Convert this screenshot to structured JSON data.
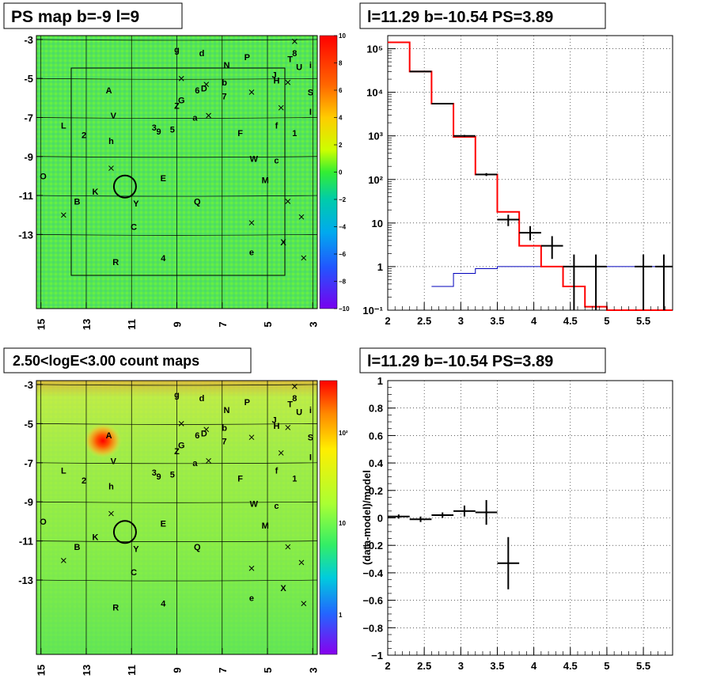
{
  "panels": {
    "tl_title": "PS map b=-9 l=9",
    "tr_title": "l=11.29 b=-10.54 PS=3.89",
    "bl_title": "2.50<logE<3.00 count maps",
    "br_title": "l=11.29 b=-10.54 PS=3.89"
  },
  "map_axes": {
    "y_ticks": [
      "-3",
      "-5",
      "-7",
      "-9",
      "-11",
      "-13"
    ],
    "x_ticks": [
      "15",
      "13",
      "11",
      "9",
      "7",
      "5",
      "3"
    ]
  },
  "colorbar_top": {
    "ticks": [
      "10",
      "8",
      "6",
      "4",
      "2",
      "0",
      "−2",
      "−4",
      "−6",
      "−8",
      "−10"
    ]
  },
  "colorbar_bottom": {
    "ticks": [
      "10²",
      "10",
      "1"
    ]
  },
  "sources": [
    {
      "t": "g",
      "l": 9.0,
      "b": -3.5
    },
    {
      "t": "d",
      "l": 7.9,
      "b": -3.7
    },
    {
      "t": "P",
      "l": 5.9,
      "b": -3.9
    },
    {
      "t": "N",
      "l": 6.8,
      "b": -4.3
    },
    {
      "t": "T",
      "l": 4.0,
      "b": -4.0
    },
    {
      "t": "8",
      "l": 3.8,
      "b": -3.7
    },
    {
      "t": "U",
      "l": 3.6,
      "b": -4.4
    },
    {
      "t": "i",
      "l": 3.1,
      "b": -4.3
    },
    {
      "t": "J",
      "l": 4.7,
      "b": -4.8
    },
    {
      "t": "H",
      "l": 4.6,
      "b": -5.1
    },
    {
      "t": "b",
      "l": 6.9,
      "b": -5.2
    },
    {
      "t": "6",
      "l": 8.1,
      "b": -5.6
    },
    {
      "t": "D",
      "l": 7.8,
      "b": -5.5
    },
    {
      "t": "S",
      "l": 3.1,
      "b": -5.7
    },
    {
      "t": "A",
      "l": 12.0,
      "b": -5.6
    },
    {
      "t": "7",
      "l": 6.9,
      "b": -5.9
    },
    {
      "t": "G",
      "l": 8.8,
      "b": -6.1
    },
    {
      "t": "Z",
      "l": 9.0,
      "b": -6.4
    },
    {
      "t": "I",
      "l": 3.1,
      "b": -6.7
    },
    {
      "t": "V",
      "l": 11.8,
      "b": -6.9
    },
    {
      "t": "a",
      "l": 8.2,
      "b": -7.0
    },
    {
      "t": "L",
      "l": 14.0,
      "b": -7.4
    },
    {
      "t": "f",
      "l": 4.6,
      "b": -7.4
    },
    {
      "t": "3",
      "l": 10.0,
      "b": -7.5
    },
    {
      "t": "5",
      "l": 9.2,
      "b": -7.6
    },
    {
      "t": "9",
      "l": 9.8,
      "b": -7.7
    },
    {
      "t": "F",
      "l": 6.2,
      "b": -7.8
    },
    {
      "t": "1",
      "l": 3.8,
      "b": -7.8
    },
    {
      "t": "2",
      "l": 13.1,
      "b": -7.9
    },
    {
      "t": "h",
      "l": 11.9,
      "b": -8.2
    },
    {
      "t": "W",
      "l": 5.6,
      "b": -9.1
    },
    {
      "t": "c",
      "l": 4.6,
      "b": -9.2
    },
    {
      "t": "E",
      "l": 9.6,
      "b": -10.1
    },
    {
      "t": "M",
      "l": 5.1,
      "b": -10.2
    },
    {
      "t": "O",
      "l": 14.9,
      "b": -10.0
    },
    {
      "t": "K",
      "l": 12.6,
      "b": -10.8
    },
    {
      "t": "B",
      "l": 13.4,
      "b": -11.3
    },
    {
      "t": "Y",
      "l": 10.8,
      "b": -11.4
    },
    {
      "t": "Q",
      "l": 8.1,
      "b": -11.3
    },
    {
      "t": "C",
      "l": 10.9,
      "b": -12.6
    },
    {
      "t": "X",
      "l": 4.3,
      "b": -13.4
    },
    {
      "t": "e",
      "l": 5.7,
      "b": -13.9
    },
    {
      "t": "4",
      "l": 9.6,
      "b": -14.2
    },
    {
      "t": "R",
      "l": 11.7,
      "b": -14.4
    }
  ],
  "crosses": [
    {
      "l": 3.8,
      "b": -3.1
    },
    {
      "l": 8.8,
      "b": -5.0
    },
    {
      "l": 7.7,
      "b": -5.3
    },
    {
      "l": 5.7,
      "b": -5.7
    },
    {
      "l": 4.1,
      "b": -5.2
    },
    {
      "l": 4.4,
      "b": -6.5
    },
    {
      "l": 7.6,
      "b": -6.9
    },
    {
      "l": 11.9,
      "b": -9.6
    },
    {
      "l": 14.0,
      "b": -12.0
    },
    {
      "l": 4.1,
      "b": -11.3
    },
    {
      "l": 3.5,
      "b": -12.1
    },
    {
      "l": 5.7,
      "b": -12.4
    },
    {
      "l": 3.4,
      "b": -14.2
    }
  ],
  "circle": {
    "l": 11.29,
    "b": -10.54
  },
  "chart_data": [
    {
      "type": "line",
      "title": "l=11.29 b=-10.54 PS=3.89",
      "xlabel": "",
      "ylabel": "",
      "xlim": [
        2.0,
        5.9
      ],
      "ylim": [
        0.1,
        200000
      ],
      "yscale": "log",
      "grid": true,
      "x_ticks": [
        "2",
        "2.5",
        "3",
        "3.5",
        "4",
        "4.5",
        "5",
        "5.5"
      ],
      "y_ticks": [
        "10⁻¹",
        "1",
        "10",
        "10²",
        "10³",
        "10⁴",
        "10⁵"
      ],
      "model_total": {
        "color": "#ff0000",
        "bin_edges": [
          2.0,
          2.3,
          2.6,
          2.9,
          3.2,
          3.5,
          3.8,
          4.1,
          4.4,
          4.7,
          5.0,
          5.3,
          5.6,
          5.9
        ],
        "values": [
          140000,
          30000,
          5500,
          950,
          130,
          18,
          3.0,
          1.0,
          0.35,
          0.12,
          0.1,
          0.1,
          0.1
        ]
      },
      "model_background": {
        "color": "#0000bb",
        "bin_edges": [
          2.6,
          2.9,
          3.2,
          3.5,
          3.8,
          4.1,
          4.4,
          4.7,
          5.0,
          5.3,
          5.6,
          5.9
        ],
        "values": [
          0.35,
          0.7,
          0.9,
          1.0,
          1.0,
          1.0,
          1.0,
          1.0,
          1.0,
          1.0,
          1.0
        ]
      },
      "data_points": [
        {
          "x": 2.45,
          "xerr": 0.15,
          "y": 30000,
          "ylo": 29500,
          "yhi": 30500
        },
        {
          "x": 2.75,
          "xerr": 0.15,
          "y": 5500,
          "ylo": 5300,
          "yhi": 5700
        },
        {
          "x": 3.05,
          "xerr": 0.15,
          "y": 1000,
          "ylo": 950,
          "yhi": 1050
        },
        {
          "x": 3.35,
          "xerr": 0.15,
          "y": 130,
          "ylo": 120,
          "yhi": 140
        },
        {
          "x": 3.65,
          "xerr": 0.15,
          "y": 12,
          "ylo": 8.5,
          "yhi": 15.5
        },
        {
          "x": 3.95,
          "xerr": 0.15,
          "y": 6,
          "ylo": 4,
          "yhi": 8.5
        },
        {
          "x": 4.25,
          "xerr": 0.15,
          "y": 3,
          "ylo": 1.5,
          "yhi": 5
        },
        {
          "x": 4.55,
          "xerr": 0.15,
          "y": 1,
          "ylo": 0.1,
          "yhi": 1.9
        },
        {
          "x": 4.85,
          "xerr": 0.15,
          "y": 1,
          "ylo": 0.1,
          "yhi": 1.9
        },
        {
          "x": 5.5,
          "xerr": 0.12,
          "y": 1,
          "ylo": 0.1,
          "yhi": 1.9
        },
        {
          "x": 5.78,
          "xerr": 0.12,
          "y": 1,
          "ylo": 0.1,
          "yhi": 1.9
        }
      ]
    },
    {
      "type": "scatter",
      "title": "l=11.29 b=-10.54 PS=3.89",
      "xlabel": "",
      "ylabel": "(data-model)/model",
      "xlim": [
        2.0,
        5.9
      ],
      "ylim": [
        -1.0,
        1.0
      ],
      "grid": true,
      "x_ticks": [
        "2",
        "2.5",
        "3",
        "3.5",
        "4",
        "4.5",
        "5",
        "5.5"
      ],
      "y_ticks": [
        "−1",
        "−0.8",
        "−0.6",
        "−0.4",
        "−0.2",
        "0",
        "0.2",
        "0.4",
        "0.6",
        "0.8",
        "1"
      ],
      "data_points": [
        {
          "x": 2.15,
          "xerr": 0.15,
          "y": 0.01,
          "yerr": 0.015
        },
        {
          "x": 2.45,
          "xerr": 0.15,
          "y": -0.01,
          "yerr": 0.02
        },
        {
          "x": 2.75,
          "xerr": 0.15,
          "y": 0.02,
          "yerr": 0.02
        },
        {
          "x": 3.05,
          "xerr": 0.15,
          "y": 0.05,
          "yerr": 0.04
        },
        {
          "x": 3.35,
          "xerr": 0.15,
          "y": 0.04,
          "yerr": 0.09
        },
        {
          "x": 3.65,
          "xerr": 0.15,
          "y": -0.33,
          "yerr": 0.19
        }
      ]
    }
  ]
}
